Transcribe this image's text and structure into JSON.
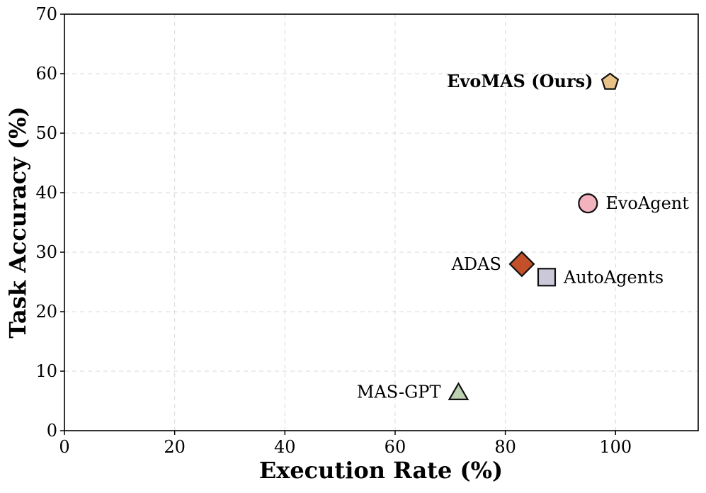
{
  "chart_data": {
    "type": "scatter",
    "title": "",
    "xlabel": "Execution Rate (%)",
    "ylabel": "Task Accuracy (%)",
    "xlim": [
      0,
      115
    ],
    "ylim": [
      0,
      70
    ],
    "xticks": [
      0,
      20,
      40,
      60,
      80,
      100
    ],
    "yticks": [
      0,
      10,
      20,
      30,
      40,
      50,
      60,
      70
    ],
    "grid": true,
    "points": [
      {
        "name": "EvoMAS (Ours)",
        "x": 99,
        "y": 58.7,
        "marker": "pentagon",
        "color": "#E8C287",
        "label_side": "left",
        "bold": true
      },
      {
        "name": "EvoAgent",
        "x": 95,
        "y": 38.2,
        "marker": "circle",
        "color": "#F2B3BE",
        "label_side": "right",
        "bold": false
      },
      {
        "name": "ADAS",
        "x": 83,
        "y": 28,
        "marker": "diamond",
        "color": "#C4502A",
        "label_side": "left",
        "bold": false
      },
      {
        "name": "AutoAgents",
        "x": 87.5,
        "y": 25.8,
        "marker": "square",
        "color": "#CBC8DA",
        "label_side": "right",
        "bold": false
      },
      {
        "name": "MAS-GPT",
        "x": 71.5,
        "y": 6.5,
        "marker": "triangle",
        "color": "#BCD1B1",
        "label_side": "left",
        "bold": false
      }
    ]
  }
}
